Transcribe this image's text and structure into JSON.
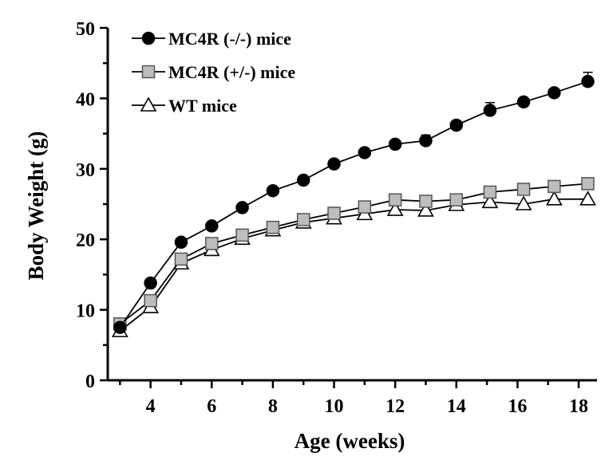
{
  "chart_data": {
    "type": "line",
    "xlabel": "Age (weeks)",
    "ylabel": "Body Weight (g)",
    "xlim": [
      2.6,
      18.6
    ],
    "ylim": [
      0,
      50
    ],
    "xticks": [
      4,
      6,
      8,
      10,
      12,
      14,
      16,
      18
    ],
    "yticks": [
      0,
      10,
      20,
      30,
      40,
      50
    ],
    "legend_position": "top-left",
    "grid": false,
    "series": [
      {
        "name": "MC4R (-/-) mice",
        "marker": "circle",
        "marker_fill": "#000000",
        "x": [
          3,
          4,
          5,
          6,
          7,
          8,
          9,
          10,
          11,
          12,
          13,
          14,
          15.1,
          16.2,
          17.2,
          18.3
        ],
        "y": [
          7.5,
          13.8,
          19.6,
          21.9,
          24.5,
          26.9,
          28.4,
          30.7,
          32.3,
          33.5,
          34.0,
          36.2,
          38.3,
          39.5,
          40.8,
          42.4
        ],
        "error": [
          0,
          0,
          0,
          0,
          0,
          0,
          0,
          0,
          0,
          0,
          0.8,
          0.6,
          1.1,
          0,
          0,
          1.3
        ]
      },
      {
        "name": "MC4R (+/-) mice",
        "marker": "square",
        "marker_fill": "#bdbdbd",
        "x": [
          3,
          4,
          5,
          6,
          7,
          8,
          9,
          10,
          11,
          12,
          13,
          14,
          15.1,
          16.2,
          17.2,
          18.3
        ],
        "y": [
          8.0,
          11.3,
          17.2,
          19.4,
          20.6,
          21.7,
          22.8,
          23.7,
          24.6,
          25.6,
          25.4,
          25.6,
          26.7,
          27.1,
          27.5,
          27.9
        ],
        "error": [
          0,
          0,
          0,
          0,
          0,
          0,
          0,
          0,
          0,
          0,
          0,
          0,
          0,
          0,
          0,
          0
        ]
      },
      {
        "name": "WT mice",
        "marker": "triangle",
        "marker_fill": "#ffffff",
        "x": [
          3,
          4,
          5,
          6,
          7,
          8,
          9,
          10,
          11,
          12,
          13,
          14,
          15.1,
          16.2,
          17.2,
          18.3
        ],
        "y": [
          7.0,
          10.4,
          16.6,
          18.5,
          20.1,
          21.3,
          22.4,
          23.0,
          23.6,
          24.2,
          24.1,
          24.9,
          25.3,
          25.0,
          25.7,
          25.7
        ],
        "error": [
          0,
          0,
          0,
          0,
          0,
          0,
          0,
          0,
          0,
          0,
          0,
          0,
          0,
          0,
          0,
          0
        ]
      }
    ]
  }
}
